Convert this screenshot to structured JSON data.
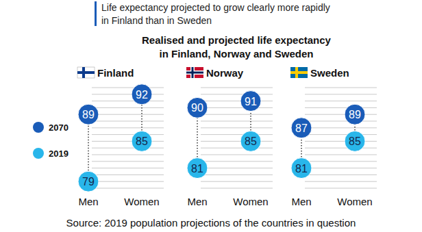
{
  "chart_data": {
    "type": "dot",
    "subtitle": "Life expectancy projected to grow clearly more rapidly\nin Finland than in Sweden",
    "title": "Realised and projected life expectancy\nin Finland, Norway and Sweden",
    "groups": [
      "Finland",
      "Norway",
      "Sweden"
    ],
    "categories": [
      "Men",
      "Women",
      "Men",
      "Women",
      "Men",
      "Women"
    ],
    "series": [
      {
        "name": "2070",
        "color": "#1a5cb8",
        "values": [
          89,
          92,
          90,
          91,
          87,
          89
        ]
      },
      {
        "name": "2019",
        "color": "#29b6ea",
        "values": [
          79,
          85,
          81,
          85,
          81,
          85
        ]
      }
    ],
    "ylim": [
      78,
      93
    ],
    "yticks": [
      78,
      79,
      80,
      81,
      82,
      83,
      84,
      85,
      86,
      87,
      88,
      89,
      90,
      91,
      92,
      93
    ],
    "grid": true,
    "tick_labels": false,
    "data_labels": true,
    "legend": "left",
    "source": "Source: 2019 population projections of the countries in question"
  }
}
